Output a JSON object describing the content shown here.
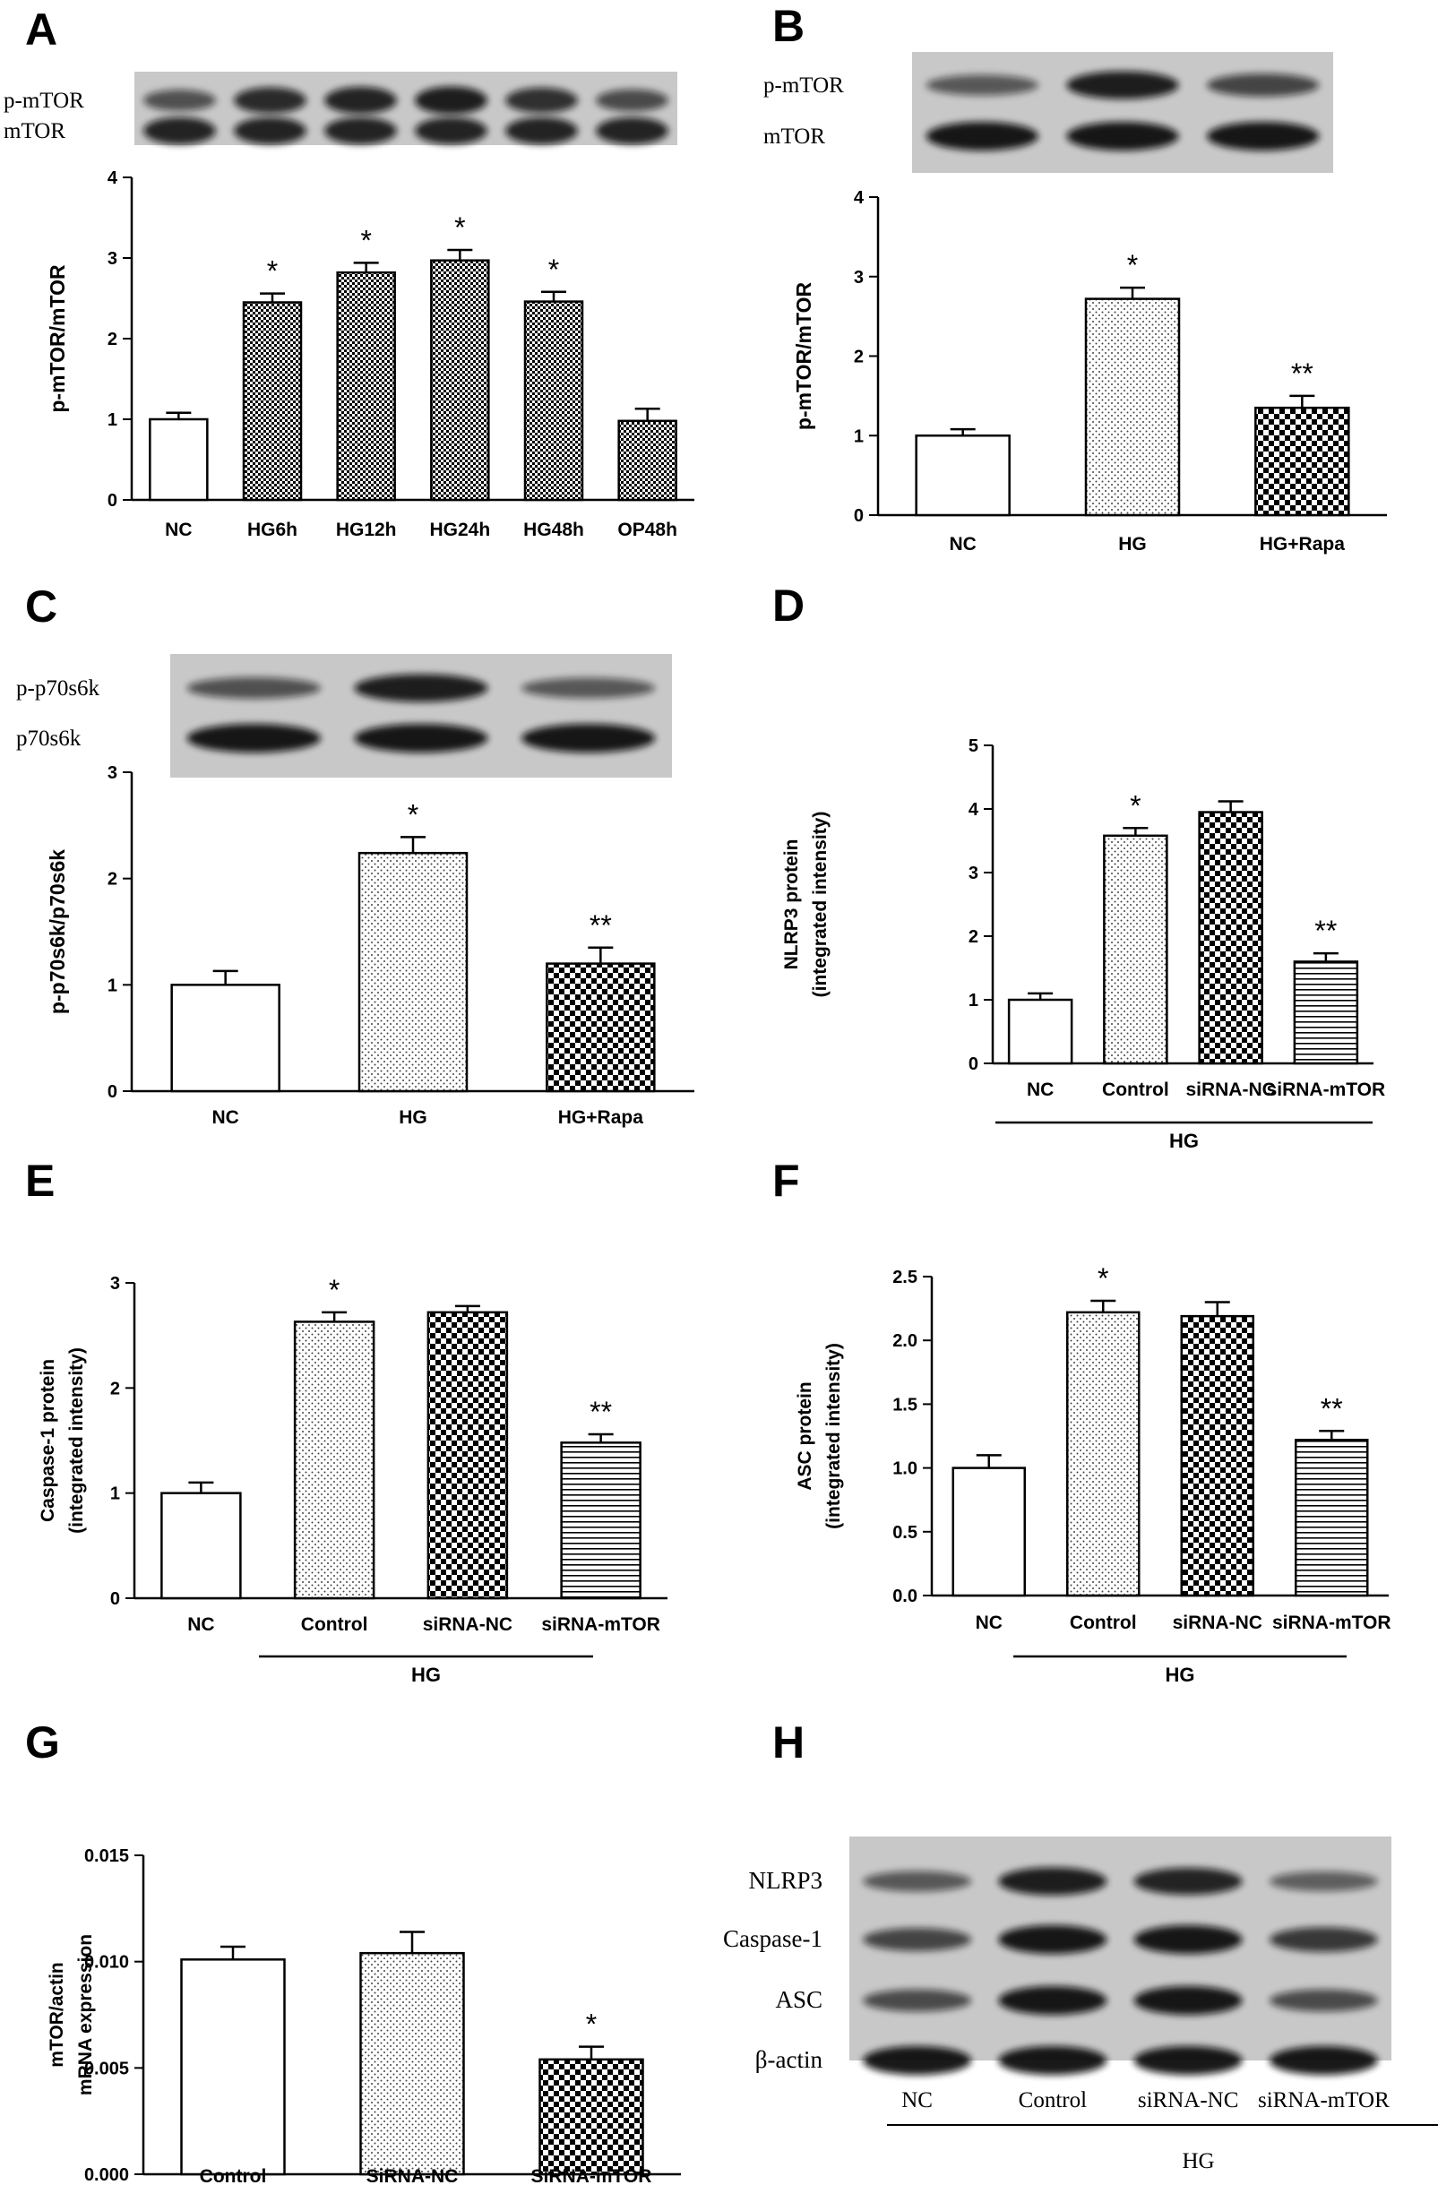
{
  "panels": [
    {
      "letter": "A",
      "chart_data": {
        "type": "bar",
        "title": "",
        "ylabel": "p-mTOR/mTOR",
        "ylim": [
          0,
          4
        ],
        "yticks": [
          "0",
          "1",
          "2",
          "3",
          "4"
        ],
        "categories": [
          "NC",
          "HG6h",
          "HG12h",
          "HG24h",
          "HG48h",
          "OP48h"
        ],
        "values": [
          1.0,
          2.45,
          2.82,
          2.97,
          2.46,
          0.98
        ],
        "errors": [
          0.08,
          0.11,
          0.12,
          0.13,
          0.12,
          0.15
        ],
        "patterns": [
          "white",
          "dense-check",
          "dense-check",
          "dense-check",
          "dense-check",
          "dense-check"
        ],
        "annotations": [
          "",
          "*",
          "*",
          "*",
          "*",
          ""
        ],
        "group_label": ""
      },
      "blot": {
        "labels": [
          "p-mTOR",
          "mTOR"
        ],
        "lanes": 6,
        "intensities": [
          [
            0.55,
            0.85,
            0.9,
            0.95,
            0.8,
            0.6
          ],
          [
            0.9,
            0.9,
            0.9,
            0.9,
            0.9,
            0.9
          ]
        ]
      }
    },
    {
      "letter": "B",
      "chart_data": {
        "type": "bar",
        "title": "",
        "ylabel": "p-mTOR/mTOR",
        "ylim": [
          0,
          4
        ],
        "yticks": [
          "0",
          "1",
          "2",
          "3",
          "4"
        ],
        "categories": [
          "NC",
          "HG",
          "HG+Rapa"
        ],
        "values": [
          1.0,
          2.72,
          1.35
        ],
        "errors": [
          0.08,
          0.14,
          0.15
        ],
        "patterns": [
          "white",
          "dots",
          "checker"
        ],
        "annotations": [
          "",
          "*",
          "**"
        ],
        "group_label": ""
      },
      "blot": {
        "labels": [
          "p-mTOR",
          "mTOR"
        ],
        "lanes": 3,
        "intensities": [
          [
            0.5,
            0.95,
            0.65
          ],
          [
            1.0,
            1.0,
            1.0
          ]
        ]
      }
    },
    {
      "letter": "C",
      "chart_data": {
        "type": "bar",
        "title": "",
        "ylabel": "p-p70s6k/p70s6k",
        "ylim": [
          0,
          3
        ],
        "yticks": [
          "0",
          "1",
          "2",
          "3"
        ],
        "categories": [
          "NC",
          "HG",
          "HG+Rapa"
        ],
        "values": [
          1.0,
          2.24,
          1.2
        ],
        "errors": [
          0.13,
          0.15,
          0.15
        ],
        "patterns": [
          "white",
          "dots",
          "checker"
        ],
        "annotations": [
          "",
          "*",
          "**"
        ],
        "group_label": ""
      },
      "blot": {
        "labels": [
          "p-p70s6k",
          "p70s6k"
        ],
        "lanes": 3,
        "intensities": [
          [
            0.55,
            0.95,
            0.5
          ],
          [
            1.0,
            1.0,
            1.0
          ]
        ]
      }
    },
    {
      "letter": "D",
      "chart_data": {
        "type": "bar",
        "title": "",
        "ylabel": [
          "NLRP3 protein",
          "(integrated intensity)"
        ],
        "ylim": [
          0,
          5
        ],
        "yticks": [
          "0",
          "1",
          "2",
          "3",
          "4",
          "5"
        ],
        "categories": [
          "NC",
          "Control",
          "siRNA-NC",
          "siRNA-mTOR"
        ],
        "values": [
          1.0,
          3.58,
          3.95,
          1.6
        ],
        "errors": [
          0.1,
          0.12,
          0.17,
          0.13
        ],
        "patterns": [
          "white",
          "dots",
          "checker",
          "hlines"
        ],
        "annotations": [
          "",
          "*",
          "",
          "**"
        ],
        "group_label": "HG"
      }
    },
    {
      "letter": "E",
      "chart_data": {
        "type": "bar",
        "title": "",
        "ylabel": [
          "Caspase-1 protein",
          "(integrated intensity)"
        ],
        "ylim": [
          0,
          3
        ],
        "yticks": [
          "0",
          "1",
          "2",
          "3"
        ],
        "categories": [
          "NC",
          "Control",
          "siRNA-NC",
          "siRNA-mTOR"
        ],
        "values": [
          1.0,
          2.63,
          2.72,
          1.48
        ],
        "errors": [
          0.1,
          0.09,
          0.06,
          0.08
        ],
        "patterns": [
          "white",
          "dots",
          "checker",
          "hlines"
        ],
        "annotations": [
          "",
          "*",
          "",
          "**"
        ],
        "group_label": "HG"
      }
    },
    {
      "letter": "F",
      "chart_data": {
        "type": "bar",
        "title": "",
        "ylabel": [
          "ASC protein",
          "(integrated intensity)"
        ],
        "ylim": [
          0,
          2.5
        ],
        "yticks": [
          "0.0",
          "0.5",
          "1.0",
          "1.5",
          "2.0",
          "2.5"
        ],
        "categories": [
          "NC",
          "Control",
          "siRNA-NC",
          "siRNA-mTOR"
        ],
        "values": [
          1.0,
          2.22,
          2.19,
          1.22
        ],
        "errors": [
          0.1,
          0.09,
          0.11,
          0.07
        ],
        "patterns": [
          "white",
          "dots",
          "checker",
          "hlines"
        ],
        "annotations": [
          "",
          "*",
          "",
          "**"
        ],
        "group_label": "HG"
      }
    },
    {
      "letter": "G",
      "chart_data": {
        "type": "bar",
        "title": "",
        "ylabel": [
          "mTOR/actin",
          "mRNA expression"
        ],
        "ylim": [
          0,
          0.015
        ],
        "yticks": [
          "0.000",
          "0.005",
          "0.010",
          "0.015"
        ],
        "categories": [
          "Control",
          "SiRNA-NC",
          "SiRNA-mTOR"
        ],
        "values": [
          0.0101,
          0.0104,
          0.0054
        ],
        "errors": [
          0.0006,
          0.001,
          0.0006
        ],
        "patterns": [
          "white",
          "dots",
          "checker"
        ],
        "annotations": [
          "",
          "",
          "*"
        ],
        "group_label": ""
      }
    },
    {
      "letter": "H",
      "blot": {
        "labels": [
          "NLRP3",
          "Caspase-1",
          "ASC",
          "β-actin"
        ],
        "lanes": 4,
        "lane_labels": [
          "NC",
          "Control",
          "siRNA-NC",
          "siRNA-mTOR"
        ],
        "group_label": "HG",
        "intensities": [
          [
            0.5,
            0.95,
            0.9,
            0.45
          ],
          [
            0.65,
            1.0,
            1.0,
            0.75
          ],
          [
            0.6,
            1.0,
            1.0,
            0.6
          ],
          [
            1.0,
            1.0,
            1.0,
            1.0
          ]
        ]
      }
    }
  ]
}
